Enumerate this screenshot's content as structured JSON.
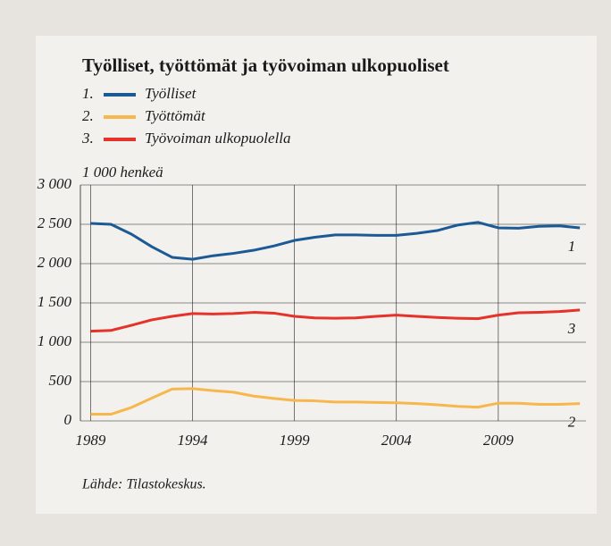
{
  "chart_data": {
    "type": "line",
    "title": "Työlliset, työttömät ja työvoiman ulkopuoliset",
    "y_label": "1 000 henkeä",
    "source": "Lähde: Tilastokeskus.",
    "x": [
      1989,
      1990,
      1991,
      1992,
      1993,
      1994,
      1995,
      1996,
      1997,
      1998,
      1999,
      2000,
      2001,
      2002,
      2003,
      2004,
      2005,
      2006,
      2007,
      2008,
      2009,
      2010,
      2011,
      2012,
      2013
    ],
    "series": [
      {
        "name": "Työlliset",
        "legend_number": "1.",
        "end_label": "1",
        "color": "#1b5a95",
        "values": [
          2511,
          2500,
          2375,
          2215,
          2080,
          2055,
          2100,
          2130,
          2170,
          2225,
          2295,
          2335,
          2365,
          2365,
          2360,
          2360,
          2385,
          2420,
          2490,
          2525,
          2455,
          2450,
          2475,
          2480,
          2455
        ]
      },
      {
        "name": "Työttömät",
        "legend_number": "2.",
        "end_label": "2",
        "color": "#f8b74c",
        "values": [
          85,
          85,
          170,
          290,
          405,
          410,
          385,
          365,
          315,
          285,
          260,
          255,
          240,
          240,
          235,
          230,
          220,
          205,
          185,
          175,
          225,
          225,
          210,
          210,
          220
        ]
      },
      {
        "name": "Työvoiman ulkopuolella",
        "legend_number": "3.",
        "end_label": "3",
        "color": "#e5322a",
        "values": [
          1140,
          1150,
          1215,
          1285,
          1330,
          1365,
          1360,
          1365,
          1380,
          1370,
          1330,
          1310,
          1305,
          1310,
          1330,
          1345,
          1330,
          1315,
          1305,
          1300,
          1345,
          1375,
          1380,
          1390,
          1410
        ]
      }
    ],
    "xlim": [
      1988.5,
      2013.3
    ],
    "xticks": [
      1989,
      1994,
      1999,
      2004,
      2009
    ],
    "ylim": [
      0,
      3000
    ],
    "yticks": [
      0,
      500,
      {
        "value": 1000,
        "label": "1 000"
      },
      {
        "value": 1500,
        "label": "1 500"
      },
      {
        "value": 2000,
        "label": "2 000"
      },
      {
        "value": 2500,
        "label": "2 500"
      },
      {
        "value": 3000,
        "label": "3 000"
      }
    ],
    "grid": true
  }
}
